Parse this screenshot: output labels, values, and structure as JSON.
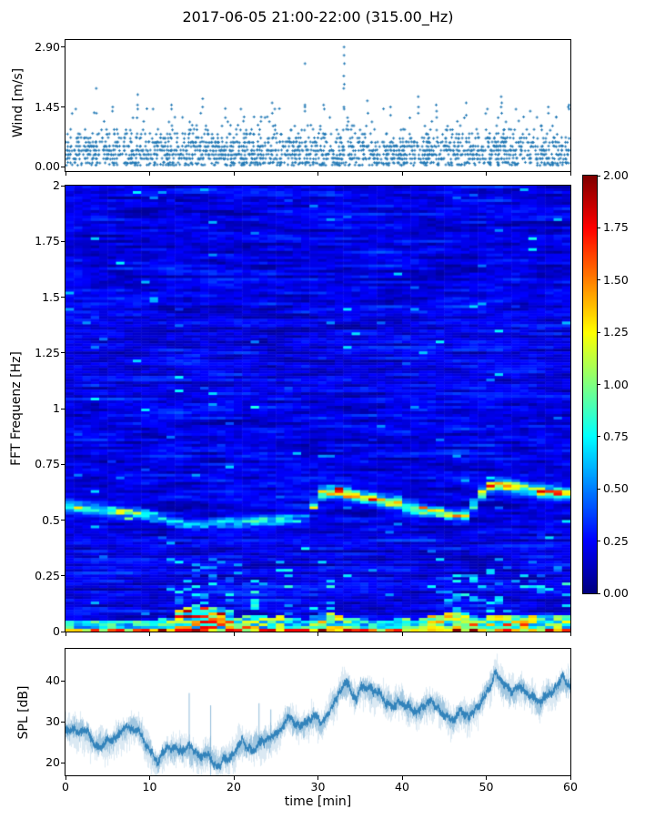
{
  "title": "2017-06-05 21:00-22:00 (315.00_Hz)",
  "colors": {
    "marker_blue": "#1f77b4",
    "spl_line": "#1f77b4",
    "axis": "#000000",
    "background": "#ffffff",
    "colormap": "jet"
  },
  "wind_panel": {
    "ylabel": "Wind [m/s]",
    "yticks": [
      {
        "label": "0.00",
        "value": 0
      },
      {
        "label": "1.45",
        "value": 1.45
      },
      {
        "label": "2.90",
        "value": 2.9
      }
    ],
    "ylim": [
      -0.1,
      3.07
    ],
    "xlim": [
      0,
      60
    ]
  },
  "spectrogram_panel": {
    "ylabel": "FFT Frequenz [Hz]",
    "yticks": [
      {
        "label": "0",
        "value": 0
      },
      {
        "label": "0.25",
        "value": 0.25
      },
      {
        "label": "0.5",
        "value": 0.5
      },
      {
        "label": "0.75",
        "value": 0.75
      },
      {
        "label": "1",
        "value": 1
      },
      {
        "label": "1.25",
        "value": 1.25
      },
      {
        "label": "1.5",
        "value": 1.5
      },
      {
        "label": "1.75",
        "value": 1.75
      },
      {
        "label": "2",
        "value": 2
      }
    ],
    "ylim": [
      0,
      2
    ],
    "xlim": [
      0,
      60
    ]
  },
  "colorbar": {
    "clim": [
      0,
      2
    ],
    "colormap": "jet",
    "ticks": [
      {
        "label": "0.00",
        "value": 0
      },
      {
        "label": "0.25",
        "value": 0.25
      },
      {
        "label": "0.50",
        "value": 0.5
      },
      {
        "label": "0.75",
        "value": 0.75
      },
      {
        "label": "1.00",
        "value": 1
      },
      {
        "label": "1.25",
        "value": 1.25
      },
      {
        "label": "1.50",
        "value": 1.5
      },
      {
        "label": "1.75",
        "value": 1.75
      },
      {
        "label": "2.00",
        "value": 2
      }
    ]
  },
  "spl_panel": {
    "ylabel": "SPL [dB]",
    "xlabel": "time [min]",
    "yticks": [
      {
        "label": "20",
        "value": 20
      },
      {
        "label": "30",
        "value": 30
      },
      {
        "label": "40",
        "value": 40
      }
    ],
    "xticks": [
      {
        "label": "0",
        "value": 0
      },
      {
        "label": "10",
        "value": 10
      },
      {
        "label": "20",
        "value": 20
      },
      {
        "label": "30",
        "value": 30
      },
      {
        "label": "40",
        "value": 40
      },
      {
        "label": "50",
        "value": 50
      },
      {
        "label": "60",
        "value": 60
      }
    ],
    "ylim": [
      16.9,
      47.8
    ],
    "xlim": [
      0,
      60
    ]
  },
  "chart_data": [
    {
      "type": "scatter",
      "name": "wind_speed",
      "title_context": "anemometer wind speed, 10-sec samples",
      "xlim": [
        0,
        60
      ],
      "ylim": [
        -0.1,
        3.07
      ],
      "marker": "+",
      "color": "#1f77b4",
      "slots_per_min": 10,
      "density_scale": 0.7,
      "base_levels": [
        0.05,
        0.1,
        0.2,
        0.3,
        0.4,
        0.5,
        0.6,
        0.7,
        0.8,
        0.9,
        1.0,
        1.1,
        1.2,
        1.3,
        1.4
      ],
      "level_density": [
        0.3,
        0.45,
        0.55,
        0.6,
        0.6,
        0.55,
        0.45,
        0.3,
        0.22,
        0.12,
        0.07,
        0.045,
        0.03,
        0.02,
        0.015
      ],
      "gust_columns": [
        {
          "t": 3.7,
          "values": [
            1.9,
            1.3
          ]
        },
        {
          "t": 5.6,
          "values": [
            1.45,
            1.35
          ]
        },
        {
          "t": 8.6,
          "values": [
            1.75,
            1.5,
            1.4
          ]
        },
        {
          "t": 10.4,
          "values": [
            1.4
          ]
        },
        {
          "t": 12.6,
          "values": [
            1.5,
            1.4
          ]
        },
        {
          "t": 16.3,
          "values": [
            1.65,
            1.45
          ]
        },
        {
          "t": 20.9,
          "values": [
            1.4
          ]
        },
        {
          "t": 24.6,
          "values": [
            1.55,
            1.3
          ]
        },
        {
          "t": 28.5,
          "values": [
            2.5,
            1.5,
            1.45,
            1.35
          ]
        },
        {
          "t": 30.7,
          "values": [
            1.5,
            1.4
          ]
        },
        {
          "t": 33.1,
          "values": [
            2.9,
            2.7,
            2.5,
            2.2,
            2.0,
            1.9,
            1.45,
            1.4
          ]
        },
        {
          "t": 35.9,
          "values": [
            1.6,
            1.3
          ]
        },
        {
          "t": 38.6,
          "values": [
            1.45,
            1.25
          ]
        },
        {
          "t": 41.9,
          "values": [
            1.7,
            1.45,
            1.3
          ]
        },
        {
          "t": 44.1,
          "values": [
            1.5,
            1.35
          ]
        },
        {
          "t": 47.6,
          "values": [
            1.55,
            1.25
          ]
        },
        {
          "t": 50.1,
          "values": [
            1.4
          ]
        },
        {
          "t": 51.8,
          "values": [
            1.7,
            1.55,
            1.45,
            1.3
          ]
        },
        {
          "t": 55.2,
          "values": [
            1.35
          ]
        },
        {
          "t": 57.4,
          "values": [
            1.45,
            1.3
          ]
        },
        {
          "t": 59.8,
          "values": [
            1.5,
            1.45,
            1.4
          ]
        }
      ]
    },
    {
      "type": "heatmap",
      "name": "fft_spectrogram",
      "xlim": [
        0,
        60
      ],
      "ylim": [
        0,
        2
      ],
      "clim": [
        0,
        2
      ],
      "colormap": "jet",
      "time_bins": 60,
      "freq_bins": 164,
      "noise_floor": [
        0.05,
        0.6
      ],
      "band_path_t_step": 1,
      "band_path": [
        [
          0.565,
          0.75
        ],
        [
          0.56,
          0.8
        ],
        [
          0.555,
          0.7
        ],
        [
          0.55,
          0.6
        ],
        [
          0.545,
          0.75
        ],
        [
          0.545,
          0.85
        ],
        [
          0.54,
          0.8
        ],
        [
          0.535,
          0.9
        ],
        [
          0.535,
          0.85
        ],
        [
          0.53,
          0.7
        ],
        [
          0.52,
          0.75
        ],
        [
          0.51,
          0.6
        ],
        [
          0.5,
          0.5
        ],
        [
          0.49,
          0.55
        ],
        [
          0.48,
          0.5
        ],
        [
          0.475,
          0.45
        ],
        [
          0.47,
          0.4
        ],
        [
          0.475,
          0.45
        ],
        [
          0.48,
          0.55
        ],
        [
          0.485,
          0.6
        ],
        [
          0.49,
          0.75
        ],
        [
          0.49,
          0.65
        ],
        [
          0.495,
          0.6
        ],
        [
          0.5,
          0.55
        ],
        [
          0.5,
          0.5
        ],
        [
          0.5,
          0.65
        ],
        [
          0.505,
          0.6
        ],
        [
          0.505,
          0.5
        ],
        [
          0.51,
          0.45
        ],
        [
          0.52,
          0.5
        ],
        [
          0.615,
          0.9
        ],
        [
          0.625,
          1.0
        ],
        [
          0.625,
          1.05
        ],
        [
          0.62,
          1.1
        ],
        [
          0.615,
          1.0
        ],
        [
          0.605,
          0.95
        ],
        [
          0.6,
          1.05
        ],
        [
          0.59,
          1.1
        ],
        [
          0.585,
          1.05
        ],
        [
          0.575,
          1.15
        ],
        [
          0.565,
          1.0
        ],
        [
          0.555,
          0.9
        ],
        [
          0.55,
          0.95
        ],
        [
          0.545,
          1.0
        ],
        [
          0.54,
          0.95
        ],
        [
          0.53,
          0.9
        ],
        [
          0.52,
          1.05
        ],
        [
          0.515,
          0.95
        ],
        [
          0.53,
          0.85
        ],
        [
          0.6,
          0.9
        ],
        [
          0.64,
          1.05
        ],
        [
          0.66,
          1.15
        ],
        [
          0.655,
          1.1
        ],
        [
          0.65,
          1.0
        ],
        [
          0.645,
          1.0
        ],
        [
          0.635,
          0.95
        ],
        [
          0.63,
          1.0
        ],
        [
          0.625,
          1.0
        ],
        [
          0.625,
          1.05
        ],
        [
          0.62,
          1.0
        ],
        [
          0.62,
          0.95
        ]
      ],
      "bottom_activity": [
        0.35,
        0.3,
        0.3,
        0.35,
        0.3,
        0.35,
        0.3,
        0.3,
        0.35,
        0.3,
        0.35,
        0.4,
        0.5,
        0.85,
        1,
        1,
        0.95,
        1,
        0.95,
        0.8,
        0.5,
        0.6,
        0.65,
        0.55,
        0.45,
        0.55,
        0.5,
        0.4,
        0.35,
        0.5,
        0.65,
        0.7,
        0.6,
        0.5,
        0.4,
        0.4,
        0.35,
        0.35,
        0.3,
        0.35,
        0.4,
        0.35,
        0.45,
        0.6,
        0.65,
        0.7,
        0.75,
        0.7,
        0.55,
        0.5,
        0.65,
        0.6,
        0.55,
        0.6,
        0.65,
        0.6,
        0.55,
        0.65,
        0.6,
        0.55
      ]
    },
    {
      "type": "line",
      "name": "spl",
      "xlim": [
        0,
        60
      ],
      "ylim": [
        16.9,
        47.8
      ],
      "color": "#1f77b4",
      "fuzz_db": 2.5,
      "t_start": 0,
      "t_step": 0.5,
      "values": [
        28.5,
        28,
        28.5,
        27.5,
        28,
        27.5,
        26.5,
        24.5,
        25,
        25.5,
        25,
        25.5,
        26,
        26.5,
        27.5,
        28,
        28.5,
        28,
        26.5,
        24.5,
        23,
        21.5,
        20.5,
        22,
        24,
        23.5,
        23,
        23.5,
        23,
        23.5,
        23,
        22,
        21.5,
        22,
        22.5,
        20.5,
        19.5,
        20.5,
        21,
        21,
        21.5,
        24,
        25.5,
        24,
        23.5,
        24,
        24.5,
        25,
        25.5,
        26,
        26.5,
        28,
        30,
        31.5,
        30,
        29,
        29,
        29.5,
        30.5,
        31.5,
        30,
        29.5,
        31.5,
        33.5,
        35.5,
        37.5,
        38.8,
        39.3,
        37.5,
        36,
        38,
        38.5,
        38,
        37.5,
        37,
        36.5,
        34.5,
        34,
        34.5,
        35.5,
        35.5,
        34,
        33.3,
        32.5,
        32.2,
        33.5,
        34.7,
        34.5,
        34,
        33,
        31.5,
        31,
        30.5,
        31.5,
        32.2,
        32,
        31.8,
        32.5,
        34,
        35.5,
        37,
        39,
        42.4,
        40.5,
        38.5,
        38,
        37.5,
        38,
        38.4,
        37.5,
        36.5,
        36,
        34.5,
        35,
        36.5,
        37.3,
        38,
        39,
        40.5,
        39,
        38.9
      ],
      "spikes": [
        {
          "t": 14.7,
          "top": 37,
          "bottom": 22
        },
        {
          "t": 17.25,
          "top": 34,
          "bottom": 14.5
        },
        {
          "t": 23.0,
          "top": 34.5,
          "bottom": 24
        },
        {
          "t": 24.4,
          "top": 33,
          "bottom": 25
        }
      ]
    }
  ]
}
